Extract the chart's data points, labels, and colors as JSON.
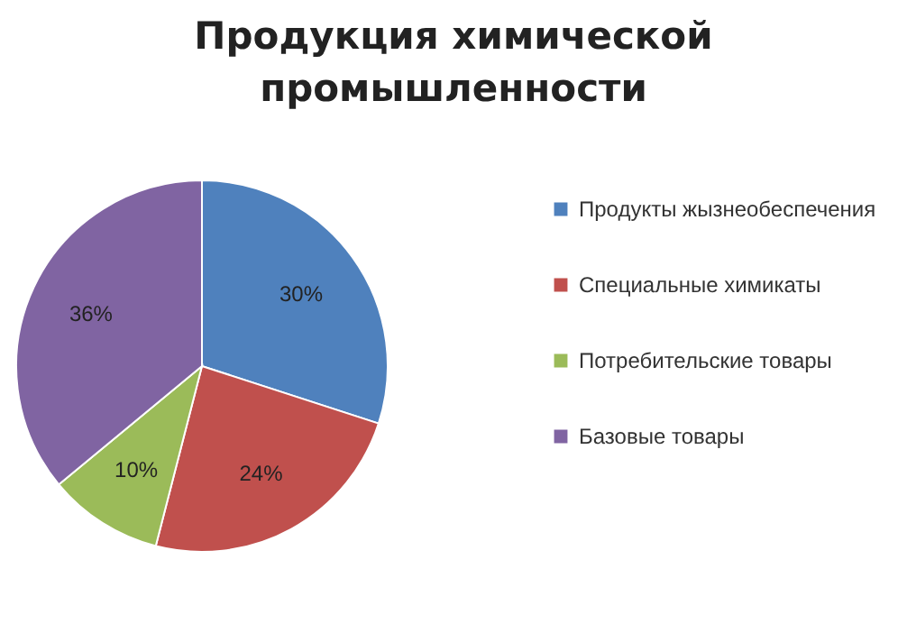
{
  "chart_data": {
    "type": "pie",
    "title": "Продукция химической\nпромышленности",
    "categories": [
      "Продукты жызнеобеспечения",
      "Специальные химикаты",
      "Потребительские товары",
      "Базовые товары"
    ],
    "values": [
      30,
      24,
      10,
      36
    ],
    "colors": [
      "#4f81bd",
      "#c0504d",
      "#9bbb59",
      "#8064a2"
    ],
    "value_labels": [
      "30%",
      "24%",
      "10%",
      "36%"
    ],
    "legend": "right"
  }
}
